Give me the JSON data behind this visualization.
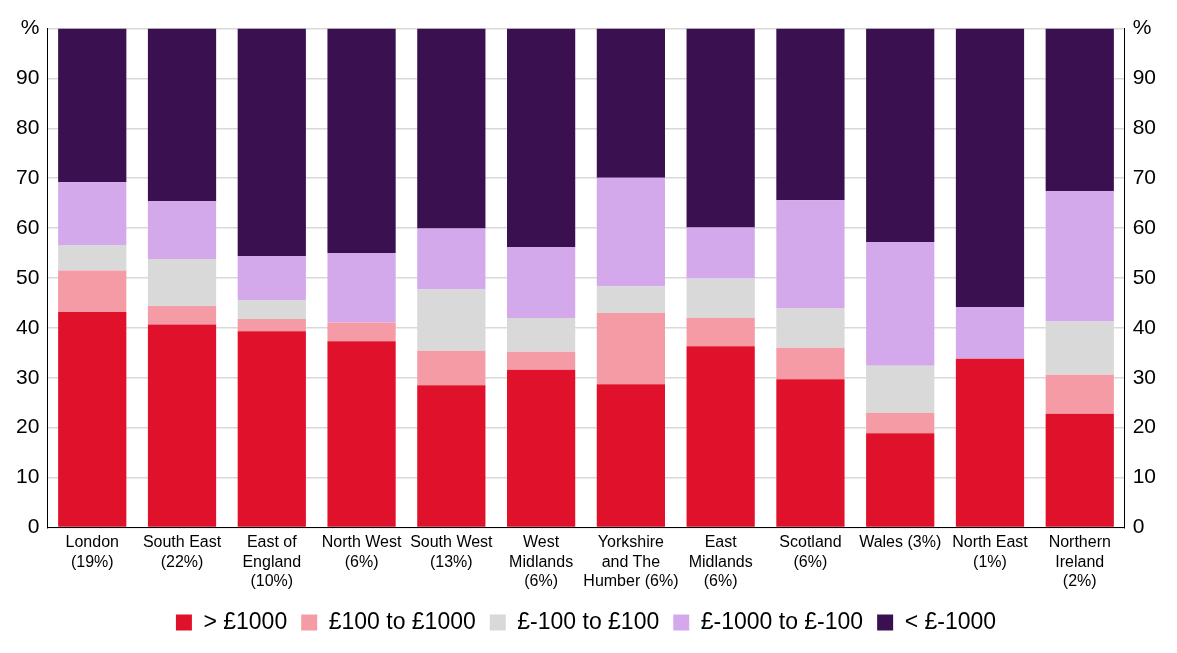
{
  "chart_data": {
    "type": "bar",
    "stacked": true,
    "categories": [
      "London (19%)",
      "South East (22%)",
      "East of England (10%)",
      "North West (6%)",
      "South West (13%)",
      "West Midlands (6%)",
      "Yorkshire and The Humber (6%)",
      "East Midlands (6%)",
      "Scotland (6%)",
      "Wales (3%)",
      "North East (1%)",
      "Northern Ireland (2%)"
    ],
    "series": [
      {
        "name": "> £1000",
        "color": "#e0112b",
        "values": [
          43.2,
          40.7,
          39.3,
          37.3,
          28.5,
          31.6,
          28.7,
          36.3,
          29.7,
          18.9,
          33.8,
          22.8
        ]
      },
      {
        "name": "£100 to £1000",
        "color": "#f59ba5",
        "values": [
          8.3,
          3.7,
          2.5,
          3.8,
          6.9,
          3.6,
          14.3,
          5.7,
          6.3,
          4.1,
          0,
          7.8
        ]
      },
      {
        "name": "£-100 to £100",
        "color": "#d9d9d9",
        "values": [
          5.1,
          9.4,
          3.8,
          0,
          12.3,
          6.8,
          5.3,
          7.9,
          8.0,
          9.4,
          0,
          10.7
        ]
      },
      {
        "name": "£-1000 to £-100",
        "color": "#d4a9ec",
        "values": [
          12.6,
          11.6,
          8.8,
          13.9,
          12.2,
          14.2,
          21.8,
          10.2,
          21.6,
          24.8,
          10.4,
          26.1
        ]
      },
      {
        "name": "< £-1000",
        "color": "#3a1050",
        "values": [
          30.8,
          34.6,
          45.6,
          45.0,
          40.1,
          43.8,
          29.9,
          39.9,
          34.4,
          42.8,
          55.8,
          32.6
        ]
      }
    ],
    "ylim": [
      0,
      100
    ],
    "yticks": [
      0,
      10,
      20,
      30,
      40,
      50,
      60,
      70,
      80,
      90,
      {
        "value": 100,
        "label": "%"
      }
    ],
    "y2lim": [
      0,
      100
    ],
    "y2ticks": [
      0,
      10,
      20,
      30,
      40,
      50,
      60,
      70,
      80,
      90,
      {
        "value": 100,
        "label": "%"
      }
    ],
    "grid": "y",
    "legend": "bottom"
  }
}
